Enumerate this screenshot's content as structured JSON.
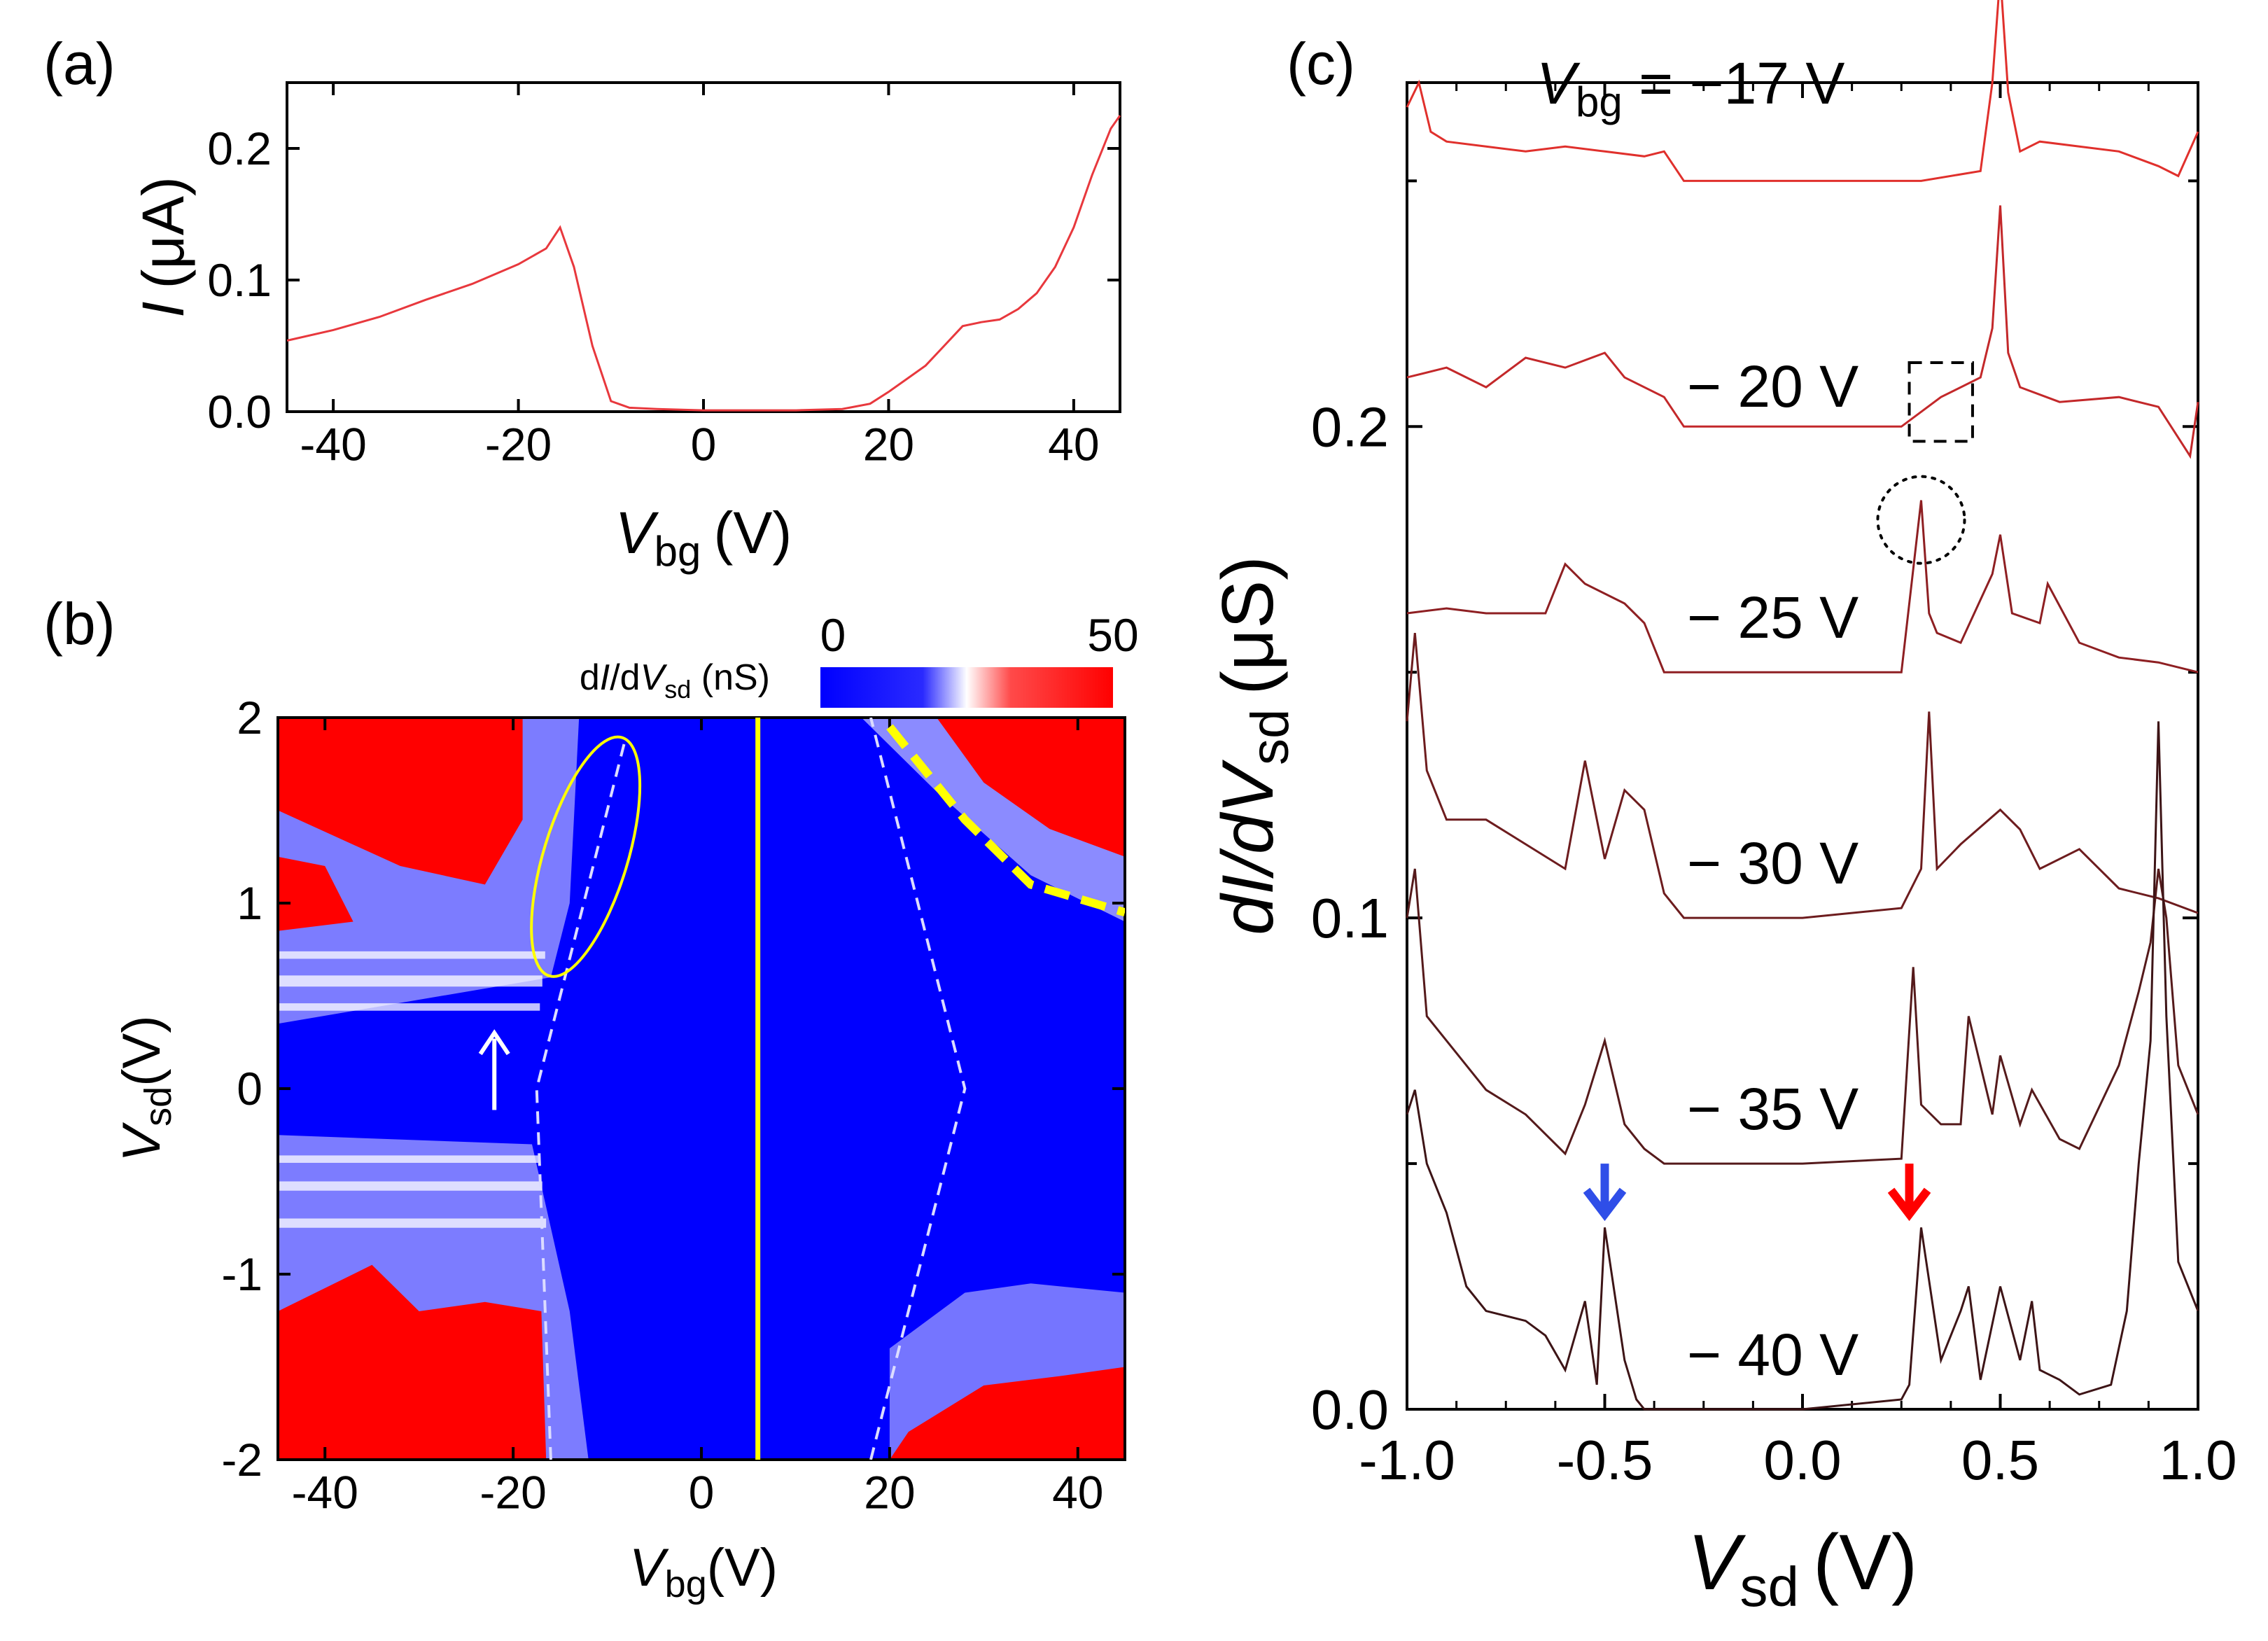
{
  "panel_labels": {
    "a": "(a)",
    "b": "(b)",
    "c": "(c)"
  },
  "chart_data": [
    {
      "panel": "a",
      "type": "line",
      "xlabel_main": "V",
      "xlabel_sub": "bg",
      "xlabel_unit": "(V)",
      "ylabel_main": "I",
      "ylabel_unit": "(μA)",
      "xlim": [
        -45,
        45
      ],
      "ylim": [
        0,
        0.25
      ],
      "xticks": [
        -40,
        -20,
        0,
        20,
        40
      ],
      "xtick_labels": [
        "-40",
        "-20",
        "0",
        "20",
        "40"
      ],
      "yticks": [
        0,
        0.1,
        0.2
      ],
      "ytick_labels": [
        "0.0",
        "0.1",
        "0.2"
      ],
      "color": "#e8383d",
      "series": [
        {
          "x": [
            -45,
            -40,
            -35,
            -30,
            -25,
            -20,
            -17,
            -15.5,
            -14,
            -12,
            -10,
            -8,
            -5,
            0,
            5,
            10,
            15,
            18,
            20,
            22,
            24,
            26,
            28,
            30,
            32,
            34,
            36,
            38,
            40,
            42,
            44,
            45
          ],
          "y": [
            0.054,
            0.062,
            0.072,
            0.085,
            0.097,
            0.112,
            0.124,
            0.14,
            0.11,
            0.05,
            0.008,
            0.003,
            0.002,
            0.001,
            0.001,
            0.001,
            0.002,
            0.006,
            0.015,
            0.025,
            0.035,
            0.05,
            0.065,
            0.068,
            0.07,
            0.078,
            0.09,
            0.11,
            0.14,
            0.18,
            0.215,
            0.225
          ]
        }
      ]
    },
    {
      "panel": "b",
      "type": "heatmap",
      "xlabel_main": "V",
      "xlabel_sub": "bg",
      "xlabel_unit": "(V)",
      "ylabel_main": "V",
      "ylabel_sub": "sd",
      "ylabel_unit": "(V)",
      "xlim": [
        -45,
        45
      ],
      "ylim": [
        -2,
        2
      ],
      "xticks": [
        -40,
        -20,
        0,
        20,
        40
      ],
      "xtick_labels": [
        "-40",
        "-20",
        "0",
        "20",
        "40"
      ],
      "yticks": [
        -2,
        -1,
        0,
        1,
        2
      ],
      "ytick_labels": [
        "-2",
        "-1",
        "0",
        "1",
        "2"
      ],
      "colorbar": {
        "title_prefix": "d",
        "title_i": "I",
        "title_mid": "/d",
        "title_v": "V",
        "title_sub": "sd",
        "title_unit": " (nS)",
        "min": 0,
        "max": 50,
        "min_label": "0",
        "max_label": "50",
        "colors": [
          "#0000ff",
          "#ffffff",
          "#ff0000"
        ]
      },
      "dashed_lines": [
        {
          "color": "#dcdcff",
          "points": [
            [
              -16,
              -2
            ],
            [
              -17.5,
              0
            ],
            [
              -8,
              1.9
            ]
          ]
        },
        {
          "color": "#dcdcff",
          "points": [
            [
              18,
              -2
            ],
            [
              28,
              0
            ],
            [
              18,
              2
            ]
          ]
        }
      ],
      "vertical_line": {
        "x": 6,
        "color": "#ffff00"
      },
      "ellipse": {
        "center": [
          -12.3,
          1.25
        ],
        "color": "#ffff00"
      },
      "thick_dashed": {
        "color": "#ffff00",
        "points": [
          [
            20,
            1.95
          ],
          [
            28,
            1.45
          ],
          [
            35,
            1.1
          ],
          [
            45,
            0.95
          ]
        ]
      },
      "arrow": {
        "at": [
          -22,
          0.3
        ],
        "color": "#ffffff"
      }
    },
    {
      "panel": "c",
      "type": "line",
      "xlabel_main": "V",
      "xlabel_sub": "sd",
      "xlabel_unit": "(V)",
      "ylabel_main": "dI/dV",
      "ylabel_sub": "sd",
      "ylabel_unit": "(μS)",
      "xlim": [
        -1.0,
        1.0
      ],
      "ylim": [
        0,
        0.27
      ],
      "xticks": [
        -1.0,
        -0.5,
        0.0,
        0.5,
        1.0
      ],
      "xtick_labels": [
        "-1.0",
        "-0.5",
        "0.0",
        "0.5",
        "1.0"
      ],
      "yticks": [
        0.0,
        0.1,
        0.2
      ],
      "ytick_labels": [
        "0.0",
        "0.1",
        "0.2"
      ],
      "series": [
        {
          "name": "−17 V",
          "label_prefix": "V",
          "label_sub": "bg",
          "label_rest": " = −17 V",
          "offset": 0.25,
          "color": "#e0302c",
          "x": [
            -1.0,
            -0.97,
            -0.94,
            -0.9,
            -0.8,
            -0.7,
            -0.6,
            -0.5,
            -0.4,
            -0.35,
            -0.3,
            -0.2,
            0.0,
            0.3,
            0.45,
            0.48,
            0.5,
            0.52,
            0.55,
            0.6,
            0.7,
            0.8,
            0.9,
            0.95,
            1.0
          ],
          "y": [
            0.015,
            0.02,
            0.01,
            0.008,
            0.007,
            0.006,
            0.007,
            0.006,
            0.005,
            0.006,
            0.0,
            0.0,
            0.0,
            0.0,
            0.002,
            0.02,
            0.042,
            0.018,
            0.006,
            0.008,
            0.007,
            0.006,
            0.003,
            0.001,
            0.01
          ]
        },
        {
          "name": "− 20 V",
          "offset": 0.2,
          "color": "#c3282a",
          "x": [
            -1.0,
            -0.9,
            -0.8,
            -0.7,
            -0.6,
            -0.5,
            -0.45,
            -0.35,
            -0.3,
            0.0,
            0.25,
            0.35,
            0.45,
            0.48,
            0.5,
            0.52,
            0.55,
            0.65,
            0.8,
            0.9,
            0.98,
            1.0
          ],
          "y": [
            0.01,
            0.012,
            0.008,
            0.014,
            0.012,
            0.015,
            0.01,
            0.006,
            0.0,
            0.0,
            0.0,
            0.006,
            0.01,
            0.02,
            0.045,
            0.015,
            0.008,
            0.005,
            0.006,
            0.004,
            -0.006,
            0.005
          ]
        },
        {
          "name": "− 25 V",
          "offset": 0.15,
          "color": "#8e1f22",
          "x": [
            -1.0,
            -0.9,
            -0.8,
            -0.65,
            -0.6,
            -0.55,
            -0.45,
            -0.4,
            -0.35,
            -0.3,
            0.0,
            0.25,
            0.3,
            0.32,
            0.34,
            0.4,
            0.48,
            0.5,
            0.53,
            0.6,
            0.62,
            0.7,
            0.8,
            0.9,
            1.0
          ],
          "y": [
            0.012,
            0.013,
            0.012,
            0.012,
            0.022,
            0.018,
            0.014,
            0.01,
            0.0,
            0.0,
            0.0,
            0.0,
            0.035,
            0.012,
            0.008,
            0.006,
            0.02,
            0.028,
            0.012,
            0.01,
            0.018,
            0.006,
            0.003,
            0.002,
            0.0
          ]
        },
        {
          "name": "− 30 V",
          "offset": 0.1,
          "color": "#6d1c1e",
          "x": [
            -1.0,
            -0.98,
            -0.95,
            -0.9,
            -0.8,
            -0.7,
            -0.6,
            -0.55,
            -0.5,
            -0.45,
            -0.4,
            -0.35,
            -0.3,
            0.0,
            0.25,
            0.3,
            0.32,
            0.34,
            0.4,
            0.5,
            0.55,
            0.6,
            0.7,
            0.8,
            0.9,
            1.0
          ],
          "y": [
            0.04,
            0.058,
            0.03,
            0.02,
            0.02,
            0.015,
            0.01,
            0.032,
            0.012,
            0.026,
            0.022,
            0.005,
            0.0,
            0.0,
            0.002,
            0.01,
            0.042,
            0.01,
            0.015,
            0.022,
            0.018,
            0.01,
            0.014,
            0.006,
            0.004,
            0.001
          ]
        },
        {
          "name": "− 35 V",
          "offset": 0.05,
          "color": "#551a1b",
          "x": [
            -1.0,
            -0.98,
            -0.95,
            -0.9,
            -0.8,
            -0.7,
            -0.6,
            -0.55,
            -0.5,
            -0.45,
            -0.4,
            -0.35,
            0.0,
            0.25,
            0.28,
            0.3,
            0.35,
            0.4,
            0.42,
            0.48,
            0.5,
            0.55,
            0.58,
            0.65,
            0.7,
            0.8,
            0.85,
            0.88,
            0.9,
            0.92,
            0.95,
            1.0
          ],
          "y": [
            0.05,
            0.06,
            0.03,
            0.025,
            0.015,
            0.01,
            0.002,
            0.012,
            0.025,
            0.008,
            0.003,
            0.0,
            0.0,
            0.001,
            0.04,
            0.012,
            0.008,
            0.008,
            0.03,
            0.01,
            0.022,
            0.008,
            0.015,
            0.005,
            0.003,
            0.02,
            0.035,
            0.045,
            0.06,
            0.05,
            0.02,
            0.01
          ]
        },
        {
          "name": "− 40 V",
          "offset": 0.0,
          "color": "#3d1416",
          "x": [
            -1.0,
            -0.98,
            -0.95,
            -0.9,
            -0.85,
            -0.8,
            -0.7,
            -0.65,
            -0.6,
            -0.55,
            -0.52,
            -0.5,
            -0.45,
            -0.42,
            -0.4,
            0.0,
            0.25,
            0.27,
            0.3,
            0.35,
            0.4,
            0.42,
            0.45,
            0.5,
            0.55,
            0.58,
            0.6,
            0.65,
            0.7,
            0.78,
            0.82,
            0.85,
            0.88,
            0.9,
            0.92,
            0.95,
            1.0
          ],
          "y": [
            0.06,
            0.065,
            0.05,
            0.04,
            0.025,
            0.02,
            0.018,
            0.015,
            0.008,
            0.022,
            0.005,
            0.037,
            0.01,
            0.002,
            0.0,
            0.0,
            0.002,
            0.005,
            0.037,
            0.01,
            0.02,
            0.025,
            0.006,
            0.025,
            0.01,
            0.022,
            0.008,
            0.006,
            0.003,
            0.005,
            0.02,
            0.05,
            0.075,
            0.14,
            0.08,
            0.03,
            0.02
          ]
        }
      ],
      "arrows": [
        {
          "x": -0.5,
          "color": "#2f4ee8"
        },
        {
          "x": 0.27,
          "color": "#ff0000"
        }
      ],
      "dashed_box": {
        "x": [
          0.27,
          0.43
        ],
        "y": [
          0.197,
          0.213
        ]
      },
      "dotted_circle": {
        "center": [
          0.3,
          0.181
        ]
      }
    }
  ]
}
